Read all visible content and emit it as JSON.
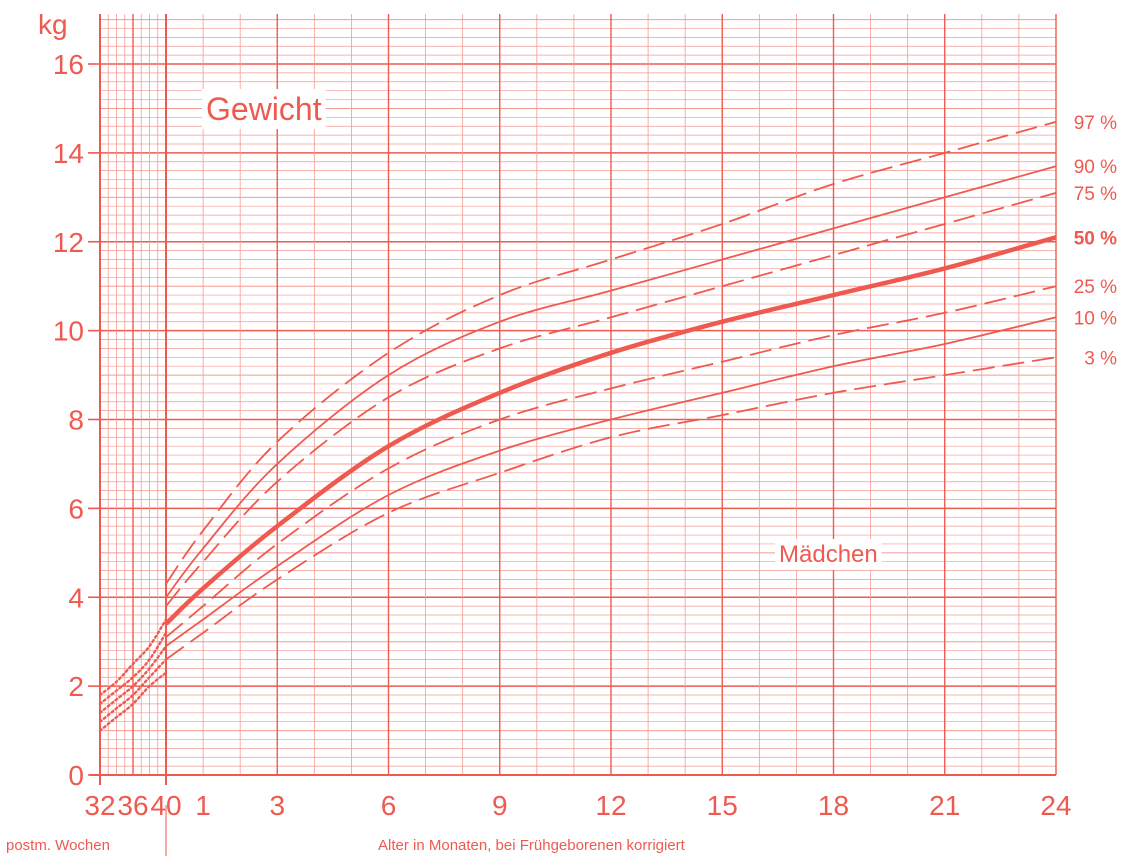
{
  "chart_data": {
    "type": "line",
    "title": "Gewicht",
    "annotation": "Mädchen",
    "y_unit": "kg",
    "xlabel_weeks": "postm. Wochen",
    "xlabel_months": "Alter in Monaten, bei Frühgeborenen korrigiert",
    "ylim": [
      0,
      17
    ],
    "y_ticks": [
      "0",
      "2",
      "4",
      "6",
      "8",
      "10",
      "12",
      "14",
      "16"
    ],
    "x_week_ticks": [
      "32",
      "36",
      "40"
    ],
    "x_month_ticks": [
      "1",
      "3",
      "6",
      "9",
      "12",
      "15",
      "18",
      "21",
      "24"
    ],
    "grid": true,
    "color": "#ef5a50",
    "series": [
      {
        "name": "97 %",
        "style": "dashed",
        "bold": false,
        "months": [
          0,
          1,
          3,
          6,
          9,
          12,
          15,
          18,
          21,
          24
        ],
        "values": [
          4.3,
          5.5,
          7.5,
          9.5,
          10.8,
          11.6,
          12.4,
          13.3,
          14.0,
          14.7
        ]
      },
      {
        "name": "90 %",
        "style": "solid",
        "bold": false,
        "months": [
          0,
          1,
          3,
          6,
          9,
          12,
          15,
          18,
          21,
          24
        ],
        "values": [
          4.0,
          5.1,
          7.0,
          9.0,
          10.2,
          10.9,
          11.6,
          12.3,
          13.0,
          13.7
        ]
      },
      {
        "name": "75 %",
        "style": "dashed",
        "bold": false,
        "months": [
          0,
          1,
          3,
          6,
          9,
          12,
          15,
          18,
          21,
          24
        ],
        "values": [
          3.8,
          4.8,
          6.6,
          8.5,
          9.6,
          10.3,
          11.0,
          11.7,
          12.4,
          13.1
        ]
      },
      {
        "name": "50 %",
        "style": "solid",
        "bold": true,
        "months": [
          0,
          1,
          3,
          6,
          9,
          12,
          15,
          18,
          21,
          24
        ],
        "values": [
          3.4,
          4.2,
          5.6,
          7.4,
          8.6,
          9.5,
          10.2,
          10.8,
          11.4,
          12.1
        ]
      },
      {
        "name": "25 %",
        "style": "dashed",
        "bold": false,
        "months": [
          0,
          1,
          3,
          6,
          9,
          12,
          15,
          18,
          21,
          24
        ],
        "values": [
          3.1,
          3.8,
          5.2,
          6.9,
          8.0,
          8.7,
          9.3,
          9.9,
          10.4,
          11.0
        ]
      },
      {
        "name": "10 %",
        "style": "solid",
        "bold": false,
        "months": [
          0,
          1,
          3,
          6,
          9,
          12,
          15,
          18,
          21,
          24
        ],
        "values": [
          2.9,
          3.5,
          4.7,
          6.3,
          7.3,
          8.0,
          8.6,
          9.2,
          9.7,
          10.3
        ]
      },
      {
        "name": "3 %",
        "style": "dashed",
        "bold": false,
        "months": [
          0,
          1,
          3,
          6,
          9,
          12,
          15,
          18,
          21,
          24
        ],
        "values": [
          2.6,
          3.2,
          4.4,
          5.9,
          6.8,
          7.6,
          8.1,
          8.6,
          9.0,
          9.4
        ]
      }
    ],
    "preterm_series": [
      {
        "weeks": [
          32,
          34,
          36,
          38,
          40
        ],
        "values": [
          1.8,
          2.1,
          2.5,
          2.9,
          3.5
        ]
      },
      {
        "weeks": [
          32,
          34,
          36,
          38,
          40
        ],
        "values": [
          1.6,
          1.9,
          2.2,
          2.6,
          3.2
        ]
      },
      {
        "weeks": [
          32,
          34,
          36,
          38,
          40
        ],
        "values": [
          1.4,
          1.7,
          2.0,
          2.4,
          2.9
        ]
      },
      {
        "weeks": [
          32,
          34,
          36,
          38,
          40
        ],
        "values": [
          1.2,
          1.5,
          1.8,
          2.2,
          2.6
        ]
      },
      {
        "weeks": [
          32,
          34,
          36,
          38,
          40
        ],
        "values": [
          1.0,
          1.3,
          1.6,
          2.0,
          2.3
        ]
      }
    ]
  }
}
